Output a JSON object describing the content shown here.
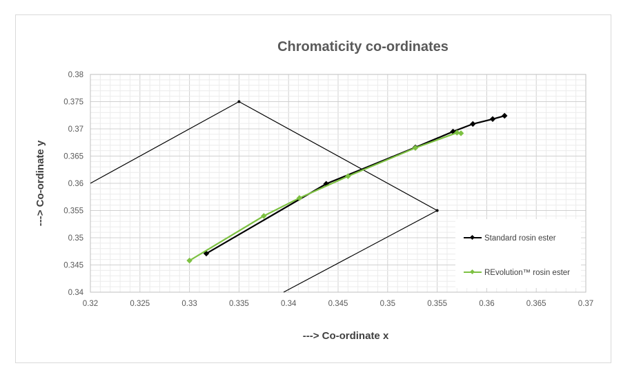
{
  "chart_data": {
    "type": "scatter",
    "title": "Chromaticity co-ordinates",
    "xlabel": "---> Co-ordinate x",
    "ylabel": "---> Co-ordinate y",
    "xlim": [
      0.32,
      0.37
    ],
    "ylim": [
      0.34,
      0.38
    ],
    "x_ticks": [
      "0.32",
      "0.325",
      "0.33",
      "0.335",
      "0.34",
      "0.345",
      "0.35",
      "0.355",
      "0.36",
      "0.365",
      "0.37"
    ],
    "y_ticks": [
      "0.34",
      "0.345",
      "0.35",
      "0.355",
      "0.36",
      "0.365",
      "0.37",
      "0.375",
      "0.38"
    ],
    "grid": true,
    "legend_position": "right",
    "series": [
      {
        "name": "Standard rosin ester",
        "color": "#000000",
        "marker": "diamond",
        "x": [
          0.3317,
          0.3438,
          0.3528,
          0.3566,
          0.3586,
          0.3606,
          0.3618
        ],
        "y": [
          0.3471,
          0.3599,
          0.3666,
          0.3695,
          0.3709,
          0.3718,
          0.3724
        ]
      },
      {
        "name": "REvolution™ rosin ester",
        "color": "#7dc142",
        "marker": "diamond",
        "x": [
          0.33,
          0.3375,
          0.3411,
          0.346,
          0.3528,
          0.357,
          0.3574
        ],
        "y": [
          0.3458,
          0.354,
          0.3573,
          0.3613,
          0.3665,
          0.3693,
          0.3692
        ]
      }
    ],
    "reference_lines": [
      {
        "x": [
          0.32,
          0.335,
          0.355,
          0.3395
        ],
        "y": [
          0.36,
          0.375,
          0.355,
          0.34
        ]
      }
    ]
  }
}
